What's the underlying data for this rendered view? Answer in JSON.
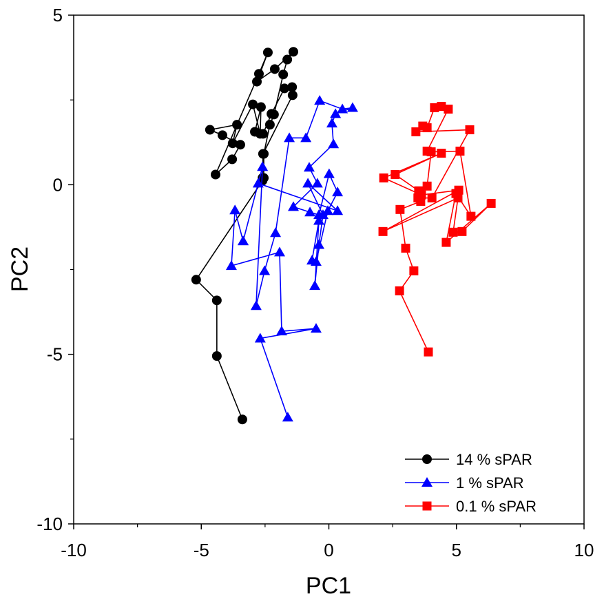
{
  "chart_data": {
    "type": "scatter",
    "title": "",
    "xlabel": "PC1",
    "ylabel": "PC2",
    "xlim": [
      -10,
      10
    ],
    "ylim": [
      -10,
      5
    ],
    "xticks": [
      -10,
      -5,
      0,
      5,
      10
    ],
    "yticks": [
      -10,
      -5,
      0,
      5
    ],
    "xtick_labels": [
      "-10",
      "-5",
      "0",
      "5",
      "10"
    ],
    "ytick_labels": [
      "-10",
      "-5",
      "0",
      "5"
    ],
    "grid": false,
    "legend_position": "bottom-right",
    "series": [
      {
        "name": "14 % sPAR",
        "color": "#000000",
        "marker": "circle",
        "points": [
          [
            -3.39,
            -6.92
          ],
          [
            -4.39,
            -5.05
          ],
          [
            -4.39,
            -3.41
          ],
          [
            -5.2,
            -2.8
          ],
          [
            -2.6,
            0.12
          ],
          [
            -2.55,
            0.2
          ],
          [
            -2.55,
            0.91
          ],
          [
            -2.31,
            1.77
          ],
          [
            -2.15,
            2.07
          ],
          [
            -1.79,
            3.25
          ],
          [
            -1.63,
            3.69
          ],
          [
            -1.39,
            3.92
          ],
          [
            -2.12,
            3.41
          ],
          [
            -2.82,
            3.04
          ],
          [
            -2.39,
            3.9
          ],
          [
            -2.74,
            3.27
          ],
          [
            -4.44,
            0.3
          ],
          [
            -3.79,
            0.75
          ],
          [
            -3.47,
            1.18
          ],
          [
            -4.17,
            1.46
          ],
          [
            -4.66,
            1.62
          ],
          [
            -3.6,
            1.77
          ],
          [
            -3.77,
            1.22
          ],
          [
            -2.98,
            2.37
          ],
          [
            -2.69,
            1.5
          ],
          [
            -2.66,
            2.29
          ],
          [
            -2.9,
            1.56
          ],
          [
            -2.58,
            1.5
          ],
          [
            -2.25,
            2.09
          ],
          [
            -1.74,
            2.84
          ],
          [
            -1.44,
            2.88
          ],
          [
            -1.42,
            2.64
          ],
          [
            -2.58,
            0.91
          ],
          [
            -2.6,
            0.2
          ]
        ]
      },
      {
        "name": "1 % sPAR",
        "color": "#0000ff",
        "marker": "triangle",
        "points": [
          [
            -1.61,
            -6.86
          ],
          [
            -2.69,
            -4.53
          ],
          [
            -0.5,
            -4.24
          ],
          [
            -1.85,
            -4.32
          ],
          [
            -1.93,
            -1.99
          ],
          [
            -3.82,
            -2.39
          ],
          [
            -3.68,
            -0.75
          ],
          [
            -3.36,
            -1.66
          ],
          [
            -2.6,
            0.53
          ],
          [
            -2.85,
            -3.57
          ],
          [
            -2.52,
            -2.54
          ],
          [
            -2.09,
            -1.42
          ],
          [
            -1.55,
            1.38
          ],
          [
            -0.9,
            1.38
          ],
          [
            -0.36,
            2.48
          ],
          [
            0.53,
            2.23
          ],
          [
            0.93,
            2.27
          ],
          [
            0.26,
            2.09
          ],
          [
            0.12,
            1.81
          ],
          [
            0.18,
            1.2
          ],
          [
            -0.77,
            0.51
          ],
          [
            -0.45,
            0.04
          ],
          [
            -1.39,
            -0.65
          ],
          [
            -0.74,
            -0.81
          ],
          [
            -0.39,
            -0.89
          ],
          [
            0.01,
            0.32
          ],
          [
            0.34,
            -0.22
          ],
          [
            -0.04,
            -0.77
          ],
          [
            -0.5,
            -2.27
          ],
          [
            -0.66,
            -2.23
          ],
          [
            -0.39,
            -1.06
          ],
          [
            -0.55,
            -2.98
          ],
          [
            -0.39,
            -1.77
          ],
          [
            -0.23,
            -0.89
          ],
          [
            -0.82,
            0.04
          ],
          [
            0.34,
            -0.77
          ],
          [
            -2.77,
            0.04
          ],
          [
            -3.36,
            -1.66
          ]
        ]
      },
      {
        "name": "0.1 % sPAR",
        "color": "#ff0000",
        "marker": "square",
        "points": [
          [
            3.9,
            -4.93
          ],
          [
            2.77,
            -3.13
          ],
          [
            3.33,
            -2.54
          ],
          [
            3.01,
            -1.87
          ],
          [
            2.79,
            -0.73
          ],
          [
            3.6,
            -0.49
          ],
          [
            3.52,
            -0.18
          ],
          [
            2.6,
            0.3
          ],
          [
            4.41,
            0.93
          ],
          [
            2.15,
            0.2
          ],
          [
            3.63,
            -0.3
          ],
          [
            5.09,
            -0.16
          ],
          [
            2.12,
            -1.38
          ],
          [
            5.06,
            -0.39
          ],
          [
            4.87,
            -1.4
          ],
          [
            5.22,
            -1.38
          ],
          [
            6.36,
            -0.55
          ],
          [
            4.6,
            -1.7
          ],
          [
            4.98,
            -0.26
          ],
          [
            5.57,
            -0.93
          ],
          [
            5.14,
            0.99
          ],
          [
            4.01,
            0.97
          ],
          [
            3.85,
            -0.04
          ],
          [
            3.49,
            -0.39
          ],
          [
            4.04,
            -0.39
          ],
          [
            5.52,
            1.62
          ],
          [
            3.41,
            1.56
          ],
          [
            3.68,
            1.73
          ],
          [
            3.85,
            1.68
          ],
          [
            4.14,
            2.27
          ],
          [
            4.41,
            2.31
          ],
          [
            4.68,
            2.23
          ],
          [
            3.85,
            0.99
          ]
        ]
      }
    ]
  }
}
